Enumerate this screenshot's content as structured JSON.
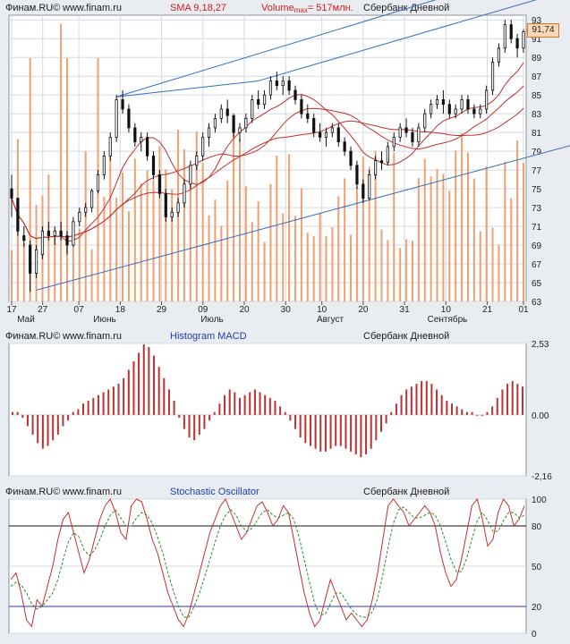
{
  "colors": {
    "bg": "#e9ecf1",
    "panel": "#ffffff",
    "grid": "#d4d9e2",
    "volume": "#f0a070",
    "candle": "#111111",
    "sma": "#c0302a",
    "trend": "#2f6fc0",
    "macd": "#c03030",
    "stoch_k": "#c03030",
    "stoch_d": "#2a8a2a",
    "stoch_level": "#3030c0"
  },
  "panels": {
    "price": {
      "brand": "Финам.RU©",
      "site": "www.finam.ru",
      "indicator": "SMA 9,18,27",
      "volume_pre": "Volume",
      "volume_sub": "max",
      "volume_post": "= 517млн.",
      "instrument": "Сбербанк Дневной",
      "last_value": "91,74"
    },
    "macd": {
      "brand": "Финам.RU©",
      "site": "www.finam.ru",
      "indicator": "Histogram MACD",
      "instrument": "Сбербанк Дневной"
    },
    "stoch": {
      "brand": "Финам.RU©",
      "site": "www.finam.ru",
      "indicator": "Stochastic Oscillator",
      "instrument": "Сбербанк Дневной"
    }
  },
  "chart_data": [
    {
      "type": "candlestick",
      "title": "Сбербанк Дневной",
      "indicators": [
        "SMA 9",
        "SMA 18",
        "SMA 27",
        "Volume"
      ],
      "volume_max": "517млн.",
      "y_ticks": [
        63,
        65,
        67,
        69,
        71,
        73,
        75,
        77,
        79,
        81,
        83,
        85,
        87,
        89,
        91,
        93
      ],
      "ylim": [
        63,
        93.5
      ],
      "x_day_ticks": [
        "17",
        "27",
        "07",
        "18",
        "29",
        "09",
        "20",
        "30",
        "10",
        "20",
        "31",
        "10",
        "21",
        "01"
      ],
      "x_month_labels": [
        "Май",
        "Июнь",
        "Июль",
        "Август",
        "Сентябрь"
      ],
      "last_price": 91.74,
      "candles_ohlc": [
        [
          75,
          76.5,
          72,
          74
        ],
        [
          74,
          74,
          70,
          70.5
        ],
        [
          70,
          71,
          68.8,
          69.5
        ],
        [
          69,
          69.5,
          64,
          66
        ],
        [
          66,
          69,
          65.5,
          68.5
        ],
        [
          68,
          71,
          67.5,
          70.5
        ],
        [
          70.5,
          71.5,
          69.5,
          70
        ],
        [
          70,
          71,
          69,
          70.5
        ],
        [
          70.5,
          71.5,
          69.5,
          70
        ],
        [
          70,
          70.5,
          68,
          69
        ],
        [
          69,
          72,
          68.8,
          71.5
        ],
        [
          71.5,
          73,
          71,
          72.5
        ],
        [
          72.5,
          73.5,
          72,
          73
        ],
        [
          73,
          75,
          72.5,
          74.8
        ],
        [
          74.8,
          77,
          74.5,
          76.5
        ],
        [
          76.5,
          79,
          76,
          78.5
        ],
        [
          78.5,
          81,
          78,
          80.5
        ],
        [
          80.5,
          85,
          80,
          84.5
        ],
        [
          84.5,
          85.5,
          83,
          83.5
        ],
        [
          83.5,
          84,
          81,
          81.5
        ],
        [
          81.5,
          82,
          79.5,
          80
        ],
        [
          80,
          81,
          79,
          80.5
        ],
        [
          80.5,
          81,
          78,
          78.5
        ],
        [
          78.5,
          79,
          76,
          76.5
        ],
        [
          76.5,
          77,
          74,
          74.5
        ],
        [
          74.5,
          75,
          71.5,
          72
        ],
        [
          72,
          73,
          71.5,
          72.5
        ],
        [
          72.5,
          74,
          72,
          73.5
        ],
        [
          73.5,
          76,
          73,
          75.5
        ],
        [
          75.5,
          78,
          75,
          77.5
        ],
        [
          77.5,
          79,
          77,
          78.5
        ],
        [
          78.5,
          81,
          78,
          80.5
        ],
        [
          80.5,
          82,
          79.5,
          81.5
        ],
        [
          81.5,
          83,
          81,
          82.5
        ],
        [
          82.5,
          84,
          82,
          83.5
        ],
        [
          83.5,
          84.5,
          82,
          82.8
        ],
        [
          82.8,
          83,
          80.5,
          81
        ],
        [
          81,
          82,
          80,
          81.5
        ],
        [
          81.5,
          83,
          81,
          82.5
        ],
        [
          82.5,
          85,
          82,
          84.5
        ],
        [
          84.5,
          85.5,
          83.5,
          84
        ],
        [
          84,
          85.5,
          83.5,
          85
        ],
        [
          85,
          87,
          84.5,
          86.5
        ],
        [
          86.5,
          87.5,
          85.5,
          86
        ],
        [
          86,
          87,
          85,
          86.5
        ],
        [
          86.5,
          87,
          85,
          85.5
        ],
        [
          85.5,
          86,
          84,
          84.5
        ],
        [
          84.5,
          85,
          82.5,
          83
        ],
        [
          83,
          84,
          82,
          82.5
        ],
        [
          82.5,
          83,
          80.5,
          81
        ],
        [
          81,
          82,
          80,
          80.5
        ],
        [
          80.5,
          81.5,
          79.5,
          81
        ],
        [
          81,
          82,
          80.5,
          81.5
        ],
        [
          81.5,
          82,
          79.5,
          80
        ],
        [
          80,
          80.5,
          78.5,
          79
        ],
        [
          79,
          79.5,
          77,
          77.5
        ],
        [
          77.5,
          78,
          75,
          75.5
        ],
        [
          75.5,
          76,
          73.5,
          74
        ],
        [
          74,
          77,
          73.8,
          76.5
        ],
        [
          76.5,
          78.5,
          76,
          78
        ],
        [
          78,
          79,
          77,
          77.8
        ],
        [
          77.8,
          80,
          77.5,
          79.5
        ],
        [
          79.5,
          81,
          79,
          80.5
        ],
        [
          80.5,
          82,
          80,
          81.5
        ],
        [
          81.5,
          82.5,
          80.5,
          81
        ],
        [
          81,
          81.5,
          79.5,
          80
        ],
        [
          80,
          82,
          79.5,
          81.5
        ],
        [
          81.5,
          83.5,
          81,
          83
        ],
        [
          83,
          84.5,
          82.5,
          84
        ],
        [
          84,
          85,
          83.5,
          84.5
        ],
        [
          84.5,
          85.5,
          83,
          84
        ],
        [
          84,
          84.5,
          82.5,
          83
        ],
        [
          83,
          84,
          82.5,
          83.5
        ],
        [
          83.5,
          85,
          83,
          84.5
        ],
        [
          84.5,
          85,
          83,
          83.5
        ],
        [
          83.5,
          84,
          82.5,
          83
        ],
        [
          83,
          84,
          82.5,
          83.5
        ],
        [
          83.5,
          86,
          83,
          85.5
        ],
        [
          85.5,
          89,
          85,
          88.5
        ],
        [
          88.5,
          90.5,
          88,
          90
        ],
        [
          90,
          93,
          89.5,
          92.5
        ],
        [
          92.5,
          93,
          90.5,
          91
        ],
        [
          91,
          91.5,
          89,
          90
        ],
        [
          90,
          92,
          89.5,
          91.74
        ]
      ]
    },
    {
      "type": "bar",
      "title": "Histogram MACD",
      "y_ticks": [
        2.53,
        0.0,
        -2.16
      ],
      "y_tick_labels": [
        "2,53",
        "0.00",
        "-2,16"
      ],
      "values": [
        0.1,
        0.1,
        -0.1,
        -0.4,
        -0.7,
        -1.0,
        -1.2,
        -1.1,
        -0.9,
        -0.7,
        -0.4,
        -0.2,
        0.1,
        0.2,
        0.4,
        0.5,
        0.6,
        0.7,
        0.8,
        0.9,
        1.0,
        1.1,
        1.3,
        1.6,
        1.9,
        2.2,
        2.5,
        2.4,
        2.1,
        1.7,
        1.3,
        0.9,
        0.5,
        -0.1,
        -0.5,
        -0.8,
        -0.9,
        -0.7,
        -0.5,
        -0.2,
        0.1,
        0.4,
        0.7,
        0.9,
        0.8,
        0.6,
        0.7,
        0.8,
        0.9,
        0.8,
        0.7,
        0.6,
        0.5,
        0.3,
        0.1,
        -0.2,
        -0.5,
        -0.8,
        -1.0,
        -1.1,
        -1.2,
        -1.3,
        -1.3,
        -1.2,
        -1.1,
        -1.1,
        -1.2,
        -1.3,
        -1.4,
        -1.5,
        -1.4,
        -1.2,
        -0.9,
        -0.6,
        -0.3,
        0.1,
        0.4,
        0.7,
        0.9,
        1.0,
        1.1,
        1.2,
        1.2,
        1.1,
        0.9,
        0.7,
        0.5,
        0.4,
        0.3,
        0.2,
        0.1,
        0.1,
        0.0,
        0.0,
        0.1,
        0.3,
        0.6,
        0.9,
        1.1,
        1.2,
        1.1,
        1.0
      ]
    },
    {
      "type": "line",
      "title": "Stochastic Oscillator",
      "y_ticks": [
        0,
        20,
        50,
        80,
        100
      ],
      "levels": [
        20,
        80
      ],
      "series": [
        {
          "values": [
            40,
            45,
            30,
            10,
            5,
            25,
            20,
            35,
            50,
            70,
            85,
            90,
            75,
            60,
            45,
            55,
            70,
            85,
            95,
            100,
            90,
            75,
            70,
            95,
            100,
            98,
            85,
            70,
            60,
            45,
            30,
            20,
            10,
            5,
            15,
            30,
            45,
            60,
            75,
            85,
            95,
            100,
            90,
            80,
            70,
            75,
            85,
            95,
            98,
            90,
            80,
            85,
            95,
            90,
            70,
            50,
            30,
            15,
            5,
            10,
            25,
            40,
            30,
            20,
            10,
            15,
            10,
            5,
            10,
            25,
            45,
            70,
            95,
            100,
            95,
            90,
            80,
            85,
            90,
            95,
            90,
            80,
            60,
            45,
            35,
            40,
            55,
            75,
            95,
            100,
            85,
            65,
            70,
            90,
            100,
            95,
            80,
            85,
            95
          ]
        },
        {
          "values": [
            35,
            38,
            36,
            30,
            22,
            18,
            20,
            25,
            30,
            40,
            55,
            68,
            75,
            72,
            62,
            58,
            62,
            70,
            80,
            88,
            92,
            86,
            80,
            80,
            86,
            90,
            88,
            82,
            72,
            60,
            45,
            32,
            20,
            12,
            12,
            20,
            30,
            42,
            55,
            68,
            80,
            88,
            92,
            88,
            80,
            76,
            78,
            84,
            90,
            92,
            88,
            86,
            88,
            90,
            85,
            72,
            55,
            38,
            22,
            14,
            14,
            22,
            30,
            30,
            24,
            18,
            14,
            12,
            12,
            16,
            26,
            44,
            64,
            82,
            92,
            94,
            90,
            86,
            86,
            88,
            90,
            88,
            80,
            68,
            55,
            46,
            46,
            56,
            70,
            84,
            90,
            84,
            76,
            76,
            84,
            90,
            90,
            86,
            88
          ]
        }
      ]
    }
  ]
}
